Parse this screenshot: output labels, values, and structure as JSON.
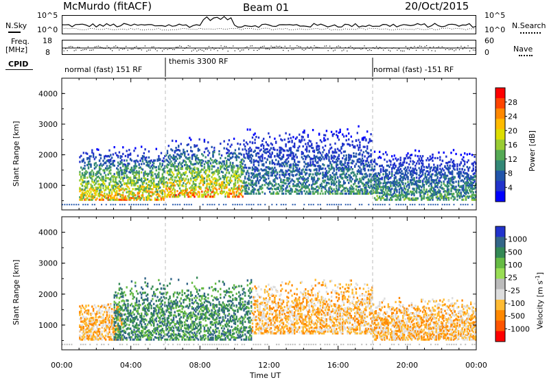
{
  "header": {
    "station": "McMurdo (fitACF)",
    "beam": "Beam 01",
    "date": "20/Oct/2015"
  },
  "status_strip": {
    "left_label_sky": "N.Sky",
    "right_label_search": "N.Search",
    "left_ticks": [
      "10^5",
      "10^0"
    ],
    "right_ticks": [
      "10^5",
      "10^0"
    ],
    "freq_label_1": "Freq.",
    "freq_label_2": "[MHz]",
    "freq_ticks": [
      "18",
      "8"
    ],
    "nave_label": "Nave",
    "nave_ticks": [
      "60",
      "0"
    ],
    "cpid_label": "CPID",
    "cpid_segments": [
      {
        "label": "normal (fast) 151 RF"
      },
      {
        "label": "themis 3300 RF"
      },
      {
        "label": "normal (fast) -151 RF"
      }
    ]
  },
  "chart_data": [
    {
      "type": "heatmap",
      "title": "",
      "ylabel": "Slant Range [km]",
      "ylim": [
        200,
        4500
      ],
      "yticks": [
        "1000",
        "2000",
        "3000",
        "4000"
      ],
      "xlim": [
        "00:00",
        "24:00"
      ],
      "colorbar": {
        "label": "Power [dB]",
        "ticks": [
          "28",
          "24",
          "20",
          "16",
          "12",
          "8",
          "4"
        ],
        "colors": [
          "#ff0000",
          "#ff4400",
          "#ff8800",
          "#ffbb00",
          "#dddd00",
          "#99cc33",
          "#55aa55",
          "#338877",
          "#2255aa",
          "#2233cc",
          "#0000ff"
        ]
      },
      "cutoff_lines_hours": [
        6.0,
        18.0
      ],
      "echo_regions": [
        {
          "t_start": 1.0,
          "t_end": 6.0,
          "r_low": 500,
          "r_high": 2300,
          "peak": 28
        },
        {
          "t_start": 6.0,
          "t_end": 10.5,
          "r_low": 600,
          "r_high": 2600,
          "peak": 30
        },
        {
          "t_start": 10.5,
          "t_end": 18.0,
          "r_low": 700,
          "r_high": 3000,
          "peak": 14
        },
        {
          "t_start": 18.0,
          "t_end": 24.0,
          "r_low": 500,
          "r_high": 2200,
          "peak": 16
        }
      ]
    },
    {
      "type": "heatmap",
      "title": "",
      "ylabel": "Slant Range [km]",
      "ylim": [
        200,
        4500
      ],
      "yticks": [
        "1000",
        "2000",
        "3000",
        "4000"
      ],
      "xlim": [
        "00:00",
        "24:00"
      ],
      "xlabel": "Time UT",
      "xticks": [
        "00:00",
        "04:00",
        "08:00",
        "12:00",
        "16:00",
        "20:00",
        "00:00"
      ],
      "colorbar": {
        "label": "Velocity [m s^-1]",
        "label_main": "Velocity [m s",
        "label_sup": "-1",
        "label_end": "]",
        "ticks": [
          "1000",
          "500",
          "100",
          "25",
          "-25",
          "-100",
          "-500",
          "-1000"
        ],
        "colors": [
          "#2233cc",
          "#336688",
          "#338855",
          "#66bb44",
          "#99dd55",
          "#bbbbbb",
          "#dddddd",
          "#ffbb33",
          "#ff8800",
          "#ff5500",
          "#ff0000"
        ]
      },
      "cutoff_lines_hours": [
        6.0,
        18.0
      ],
      "echo_regions": [
        {
          "t_start": 1.0,
          "t_end": 3.5,
          "r_low": 500,
          "r_high": 1800,
          "velocity": -200
        },
        {
          "t_start": 3.0,
          "t_end": 11.0,
          "r_low": 500,
          "r_high": 2600,
          "velocity": 300
        },
        {
          "t_start": 11.0,
          "t_end": 18.0,
          "r_low": 700,
          "r_high": 2500,
          "velocity": -250
        },
        {
          "t_start": 18.0,
          "t_end": 24.0,
          "r_low": 500,
          "r_high": 1900,
          "velocity": -300
        }
      ]
    }
  ]
}
